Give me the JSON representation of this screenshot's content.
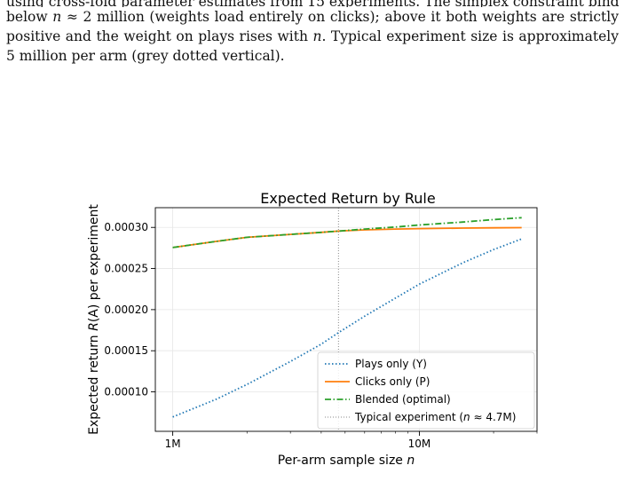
{
  "paragraph": {
    "line1": "using cross-fold parameter estimates from 15 experiments. The simplex constraint binds",
    "line2a": "below ",
    "line2_n": "n",
    "line2b": " ≈ 2 million (weights load entirely on clicks); above it both weights are strictly",
    "line3a": "positive and the weight on plays rises with ",
    "line3_n": "n",
    "line3b": ". Typical experiment size is approximately",
    "line4": "5 million per arm (grey dotted vertical)."
  },
  "chart_data": {
    "type": "line",
    "title": "Expected Return by Rule",
    "xlabel": "Per-arm sample size n",
    "ylabel": "Expected return R(A) per experiment",
    "x_scale": "log",
    "xlim": [
      850000,
      30000000
    ],
    "ylim": [
      5.2e-05,
      0.000324
    ],
    "grid": true,
    "legend_position": "lower-right",
    "x_ticks": [
      {
        "value": 1000000,
        "label": "1M"
      },
      {
        "value": 10000000,
        "label": "10M"
      }
    ],
    "y_ticks": [
      {
        "value": 0.0001,
        "label": "0.00010"
      },
      {
        "value": 0.00015,
        "label": "0.00015"
      },
      {
        "value": 0.0002,
        "label": "0.00020"
      },
      {
        "value": 0.00025,
        "label": "0.00025"
      },
      {
        "value": 0.0003,
        "label": "0.00030"
      }
    ],
    "x": [
      1000000,
      1500000,
      2000000,
      3000000,
      4000000,
      4700000,
      6000000,
      8000000,
      10000000,
      15000000,
      20000000,
      26000000
    ],
    "series": [
      {
        "name": "Plays only (Y)",
        "color": "#1f77b4",
        "dash": "dotted",
        "values": [
          6.95e-05,
          9.1e-05,
          0.000109,
          0.000137,
          0.000158,
          0.000172,
          0.000192,
          0.000214,
          0.000231,
          0.000257,
          0.000273,
          0.000286
        ]
      },
      {
        "name": "Clicks only (P)",
        "color": "#ff7f0e",
        "dash": "solid",
        "values": [
          0.0002755,
          0.000283,
          0.000288,
          0.0002915,
          0.000294,
          0.0002955,
          0.000297,
          0.000298,
          0.0002985,
          0.0002992,
          0.0002995,
          0.0002997
        ]
      },
      {
        "name": "Blended (optimal)",
        "color": "#2ca02c",
        "dash": "dashdot",
        "values": [
          0.0002755,
          0.000283,
          0.000288,
          0.0002915,
          0.000294,
          0.0002955,
          0.000298,
          0.0003005,
          0.000303,
          0.0003065,
          0.0003095,
          0.0003118
        ]
      }
    ],
    "reference_line": {
      "name": "Typical experiment (n ≈ 4.7M)",
      "x": 4700000,
      "color": "#888888",
      "dash": "dotted"
    }
  }
}
